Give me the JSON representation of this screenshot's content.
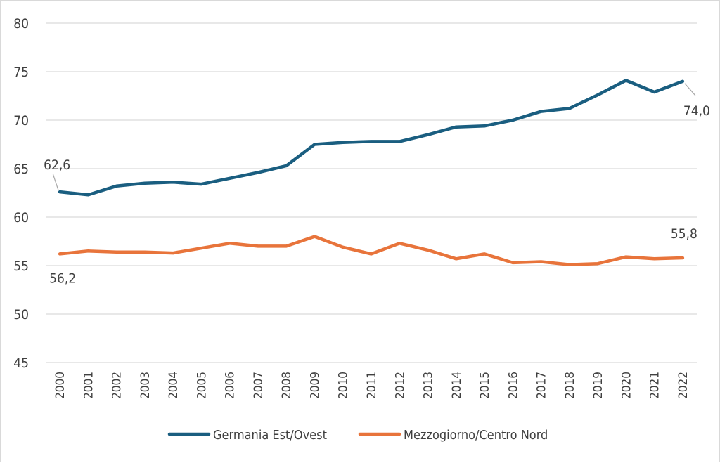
{
  "chart_data": {
    "type": "line",
    "x": [
      "2000",
      "2001",
      "2002",
      "2003",
      "2004",
      "2005",
      "2006",
      "2007",
      "2008",
      "2009",
      "2010",
      "2011",
      "2012",
      "2013",
      "2014",
      "2015",
      "2016",
      "2017",
      "2018",
      "2019",
      "2020",
      "2021",
      "2022"
    ],
    "ylim": [
      45,
      80
    ],
    "yticks": [
      45,
      50,
      55,
      60,
      65,
      70,
      75,
      80
    ],
    "grid": "horizontal",
    "legend_position": "bottom",
    "series": [
      {
        "name": "Germania Est/Ovest",
        "color": "#1a5e80",
        "values": [
          62.6,
          62.3,
          63.2,
          63.5,
          63.6,
          63.4,
          64.0,
          64.6,
          65.3,
          67.5,
          67.7,
          67.8,
          67.8,
          68.5,
          69.3,
          69.4,
          70.0,
          70.9,
          71.2,
          72.6,
          74.1,
          72.9,
          74.0
        ],
        "labels": [
          {
            "index": 0,
            "text": "62,6"
          },
          {
            "index": 22,
            "text": "74,0"
          }
        ]
      },
      {
        "name": "Mezzogiorno/Centro Nord",
        "color": "#e8743b",
        "values": [
          56.2,
          56.5,
          56.4,
          56.4,
          56.3,
          56.8,
          57.3,
          57.0,
          57.0,
          58.0,
          56.9,
          56.2,
          57.3,
          56.6,
          55.7,
          56.2,
          55.3,
          55.4,
          55.1,
          55.2,
          55.9,
          55.7,
          55.8
        ],
        "labels": [
          {
            "index": 0,
            "text": "56,2"
          },
          {
            "index": 22,
            "text": "55,8"
          }
        ]
      }
    ]
  }
}
